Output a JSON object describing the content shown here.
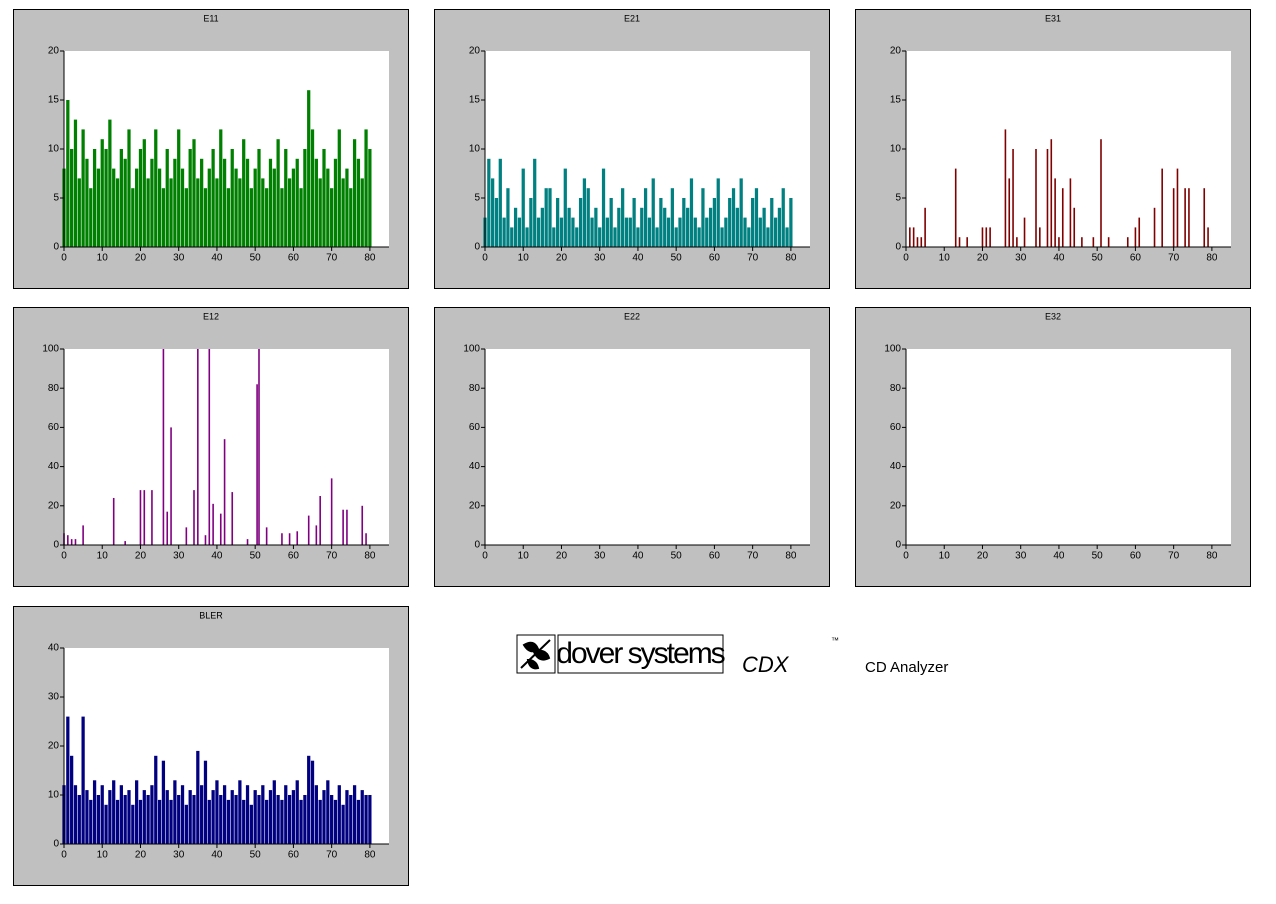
{
  "chart_data": [
    {
      "type": "bar",
      "title": "E11",
      "color": "#008000",
      "xlim": [
        0,
        85
      ],
      "ylim": [
        0,
        20
      ],
      "xticks": [
        0,
        10,
        20,
        30,
        40,
        50,
        60,
        70,
        80
      ],
      "yticks": [
        0,
        5,
        10,
        15,
        20
      ],
      "x": [
        0,
        1,
        2,
        3,
        4,
        5,
        6,
        7,
        8,
        9,
        10,
        11,
        12,
        13,
        14,
        15,
        16,
        17,
        18,
        19,
        20,
        21,
        22,
        23,
        24,
        25,
        26,
        27,
        28,
        29,
        30,
        31,
        32,
        33,
        34,
        35,
        36,
        37,
        38,
        39,
        40,
        41,
        42,
        43,
        44,
        45,
        46,
        47,
        48,
        49,
        50,
        51,
        52,
        53,
        54,
        55,
        56,
        57,
        58,
        59,
        60,
        61,
        62,
        63,
        64,
        65,
        66,
        67,
        68,
        69,
        70,
        71,
        72,
        73,
        74,
        75,
        76,
        77,
        78,
        79,
        80
      ],
      "values": [
        8,
        15,
        10,
        13,
        7,
        12,
        9,
        6,
        10,
        8,
        11,
        10,
        13,
        8,
        7,
        10,
        9,
        12,
        6,
        8,
        10,
        11,
        7,
        9,
        12,
        8,
        6,
        10,
        7,
        9,
        12,
        8,
        6,
        10,
        11,
        7,
        9,
        6,
        8,
        10,
        7,
        12,
        9,
        6,
        10,
        8,
        7,
        11,
        9,
        6,
        8,
        10,
        7,
        6,
        9,
        8,
        11,
        6,
        10,
        7,
        8,
        9,
        6,
        10,
        16,
        12,
        9,
        7,
        10,
        8,
        6,
        9,
        12,
        7,
        8,
        6,
        11,
        9,
        7,
        12,
        10
      ]
    },
    {
      "type": "bar",
      "title": "E21",
      "color": "#008080",
      "xlim": [
        0,
        85
      ],
      "ylim": [
        0,
        20
      ],
      "xticks": [
        0,
        10,
        20,
        30,
        40,
        50,
        60,
        70,
        80
      ],
      "yticks": [
        0,
        5,
        10,
        15,
        20
      ],
      "x": [
        0,
        1,
        2,
        3,
        4,
        5,
        6,
        7,
        8,
        9,
        10,
        11,
        12,
        13,
        14,
        15,
        16,
        17,
        18,
        19,
        20,
        21,
        22,
        23,
        24,
        25,
        26,
        27,
        28,
        29,
        30,
        31,
        32,
        33,
        34,
        35,
        36,
        37,
        38,
        39,
        40,
        41,
        42,
        43,
        44,
        45,
        46,
        47,
        48,
        49,
        50,
        51,
        52,
        53,
        54,
        55,
        56,
        57,
        58,
        59,
        60,
        61,
        62,
        63,
        64,
        65,
        66,
        67,
        68,
        69,
        70,
        71,
        72,
        73,
        74,
        75,
        76,
        77,
        78,
        79,
        80
      ],
      "values": [
        3,
        9,
        7,
        5,
        9,
        3,
        6,
        2,
        4,
        3,
        8,
        2,
        5,
        9,
        3,
        4,
        6,
        6,
        2,
        5,
        3,
        8,
        4,
        3,
        2,
        5,
        7,
        6,
        3,
        4,
        2,
        8,
        3,
        5,
        2,
        4,
        6,
        3,
        3,
        5,
        2,
        4,
        6,
        3,
        7,
        2,
        5,
        4,
        3,
        6,
        2,
        3,
        5,
        4,
        7,
        3,
        2,
        6,
        3,
        4,
        5,
        7,
        2,
        3,
        5,
        6,
        4,
        7,
        3,
        2,
        5,
        6,
        3,
        4,
        2,
        5,
        3,
        4,
        6,
        2,
        5
      ]
    },
    {
      "type": "bar",
      "title": "E31",
      "color": "#800000",
      "xlim": [
        0,
        85
      ],
      "ylim": [
        0,
        20
      ],
      "xticks": [
        0,
        10,
        20,
        30,
        40,
        50,
        60,
        70,
        80
      ],
      "yticks": [
        0,
        5,
        10,
        15,
        20
      ],
      "x": [
        1,
        2,
        3,
        4,
        5,
        13,
        14,
        16,
        20,
        21,
        22,
        26,
        27,
        28,
        29,
        31,
        34,
        35,
        37,
        38,
        39,
        40,
        41,
        43,
        44,
        46,
        49,
        51,
        53,
        58,
        60,
        61,
        65,
        67,
        70,
        71,
        73,
        74,
        78,
        79
      ],
      "values": [
        2,
        2,
        1,
        1,
        4,
        8,
        1,
        1,
        2,
        2,
        2,
        12,
        7,
        10,
        1,
        3,
        10,
        2,
        10,
        11,
        7,
        1,
        6,
        7,
        4,
        1,
        1,
        11,
        1,
        1,
        2,
        3,
        4,
        8,
        6,
        8,
        6,
        6,
        6,
        2
      ]
    },
    {
      "type": "bar",
      "title": "E12",
      "color": "#800080",
      "xlim": [
        0,
        85
      ],
      "ylim": [
        0,
        100
      ],
      "xticks": [
        0,
        10,
        20,
        30,
        40,
        50,
        60,
        70,
        80
      ],
      "yticks": [
        0,
        20,
        40,
        60,
        80,
        100
      ],
      "x": [
        0,
        1,
        2,
        3,
        5,
        13,
        16,
        20,
        21,
        23,
        26,
        27,
        28,
        32,
        34,
        35,
        37,
        38,
        39,
        41,
        42,
        44,
        48,
        50.5,
        51,
        53,
        57,
        59,
        61,
        64,
        66,
        67,
        70,
        73,
        74,
        78,
        79
      ],
      "values": [
        6,
        5,
        3,
        3,
        10,
        24,
        2,
        28,
        28,
        28,
        100,
        17,
        60,
        9,
        28,
        100,
        5,
        100,
        21,
        16,
        54,
        27,
        3,
        82,
        100,
        9,
        6,
        6,
        7,
        15,
        10,
        25,
        34,
        18,
        18,
        20,
        6
      ]
    },
    {
      "type": "bar",
      "title": "E22",
      "color": "#000080",
      "xlim": [
        0,
        85
      ],
      "ylim": [
        0,
        100
      ],
      "xticks": [
        0,
        10,
        20,
        30,
        40,
        50,
        60,
        70,
        80
      ],
      "yticks": [
        0,
        20,
        40,
        60,
        80,
        100
      ],
      "x": [],
      "values": []
    },
    {
      "type": "bar",
      "title": "E32",
      "color": "#000080",
      "xlim": [
        0,
        85
      ],
      "ylim": [
        0,
        100
      ],
      "xticks": [
        0,
        10,
        20,
        30,
        40,
        50,
        60,
        70,
        80
      ],
      "yticks": [
        0,
        20,
        40,
        60,
        80,
        100
      ],
      "x": [],
      "values": []
    },
    {
      "type": "bar",
      "title": "BLER",
      "color": "#000080",
      "xlim": [
        0,
        85
      ],
      "ylim": [
        0,
        40
      ],
      "xticks": [
        0,
        10,
        20,
        30,
        40,
        50,
        60,
        70,
        80
      ],
      "yticks": [
        0,
        10,
        20,
        30,
        40
      ],
      "x": [
        0,
        1,
        2,
        3,
        4,
        5,
        6,
        7,
        8,
        9,
        10,
        11,
        12,
        13,
        14,
        15,
        16,
        17,
        18,
        19,
        20,
        21,
        22,
        23,
        24,
        25,
        26,
        27,
        28,
        29,
        30,
        31,
        32,
        33,
        34,
        35,
        36,
        37,
        38,
        39,
        40,
        41,
        42,
        43,
        44,
        45,
        46,
        47,
        48,
        49,
        50,
        51,
        52,
        53,
        54,
        55,
        56,
        57,
        58,
        59,
        60,
        61,
        62,
        63,
        64,
        65,
        66,
        67,
        68,
        69,
        70,
        71,
        72,
        73,
        74,
        75,
        76,
        77,
        78,
        79,
        80
      ],
      "values": [
        12,
        26,
        18,
        12,
        10,
        26,
        11,
        9,
        13,
        10,
        12,
        8,
        11,
        13,
        9,
        12,
        10,
        11,
        8,
        13,
        9,
        11,
        10,
        12,
        18,
        9,
        17,
        11,
        9,
        13,
        10,
        12,
        8,
        11,
        10,
        19,
        12,
        17,
        9,
        11,
        13,
        10,
        12,
        9,
        11,
        10,
        13,
        9,
        12,
        8,
        11,
        10,
        12,
        9,
        11,
        13,
        10,
        9,
        12,
        10,
        11,
        13,
        9,
        10,
        18,
        17,
        12,
        9,
        11,
        13,
        10,
        9,
        12,
        8,
        11,
        10,
        12,
        9,
        11,
        10,
        10
      ]
    }
  ],
  "logo": {
    "brand": "dover systems",
    "product": "CDX",
    "trademark": "™",
    "caption": "CD Analyzer"
  }
}
